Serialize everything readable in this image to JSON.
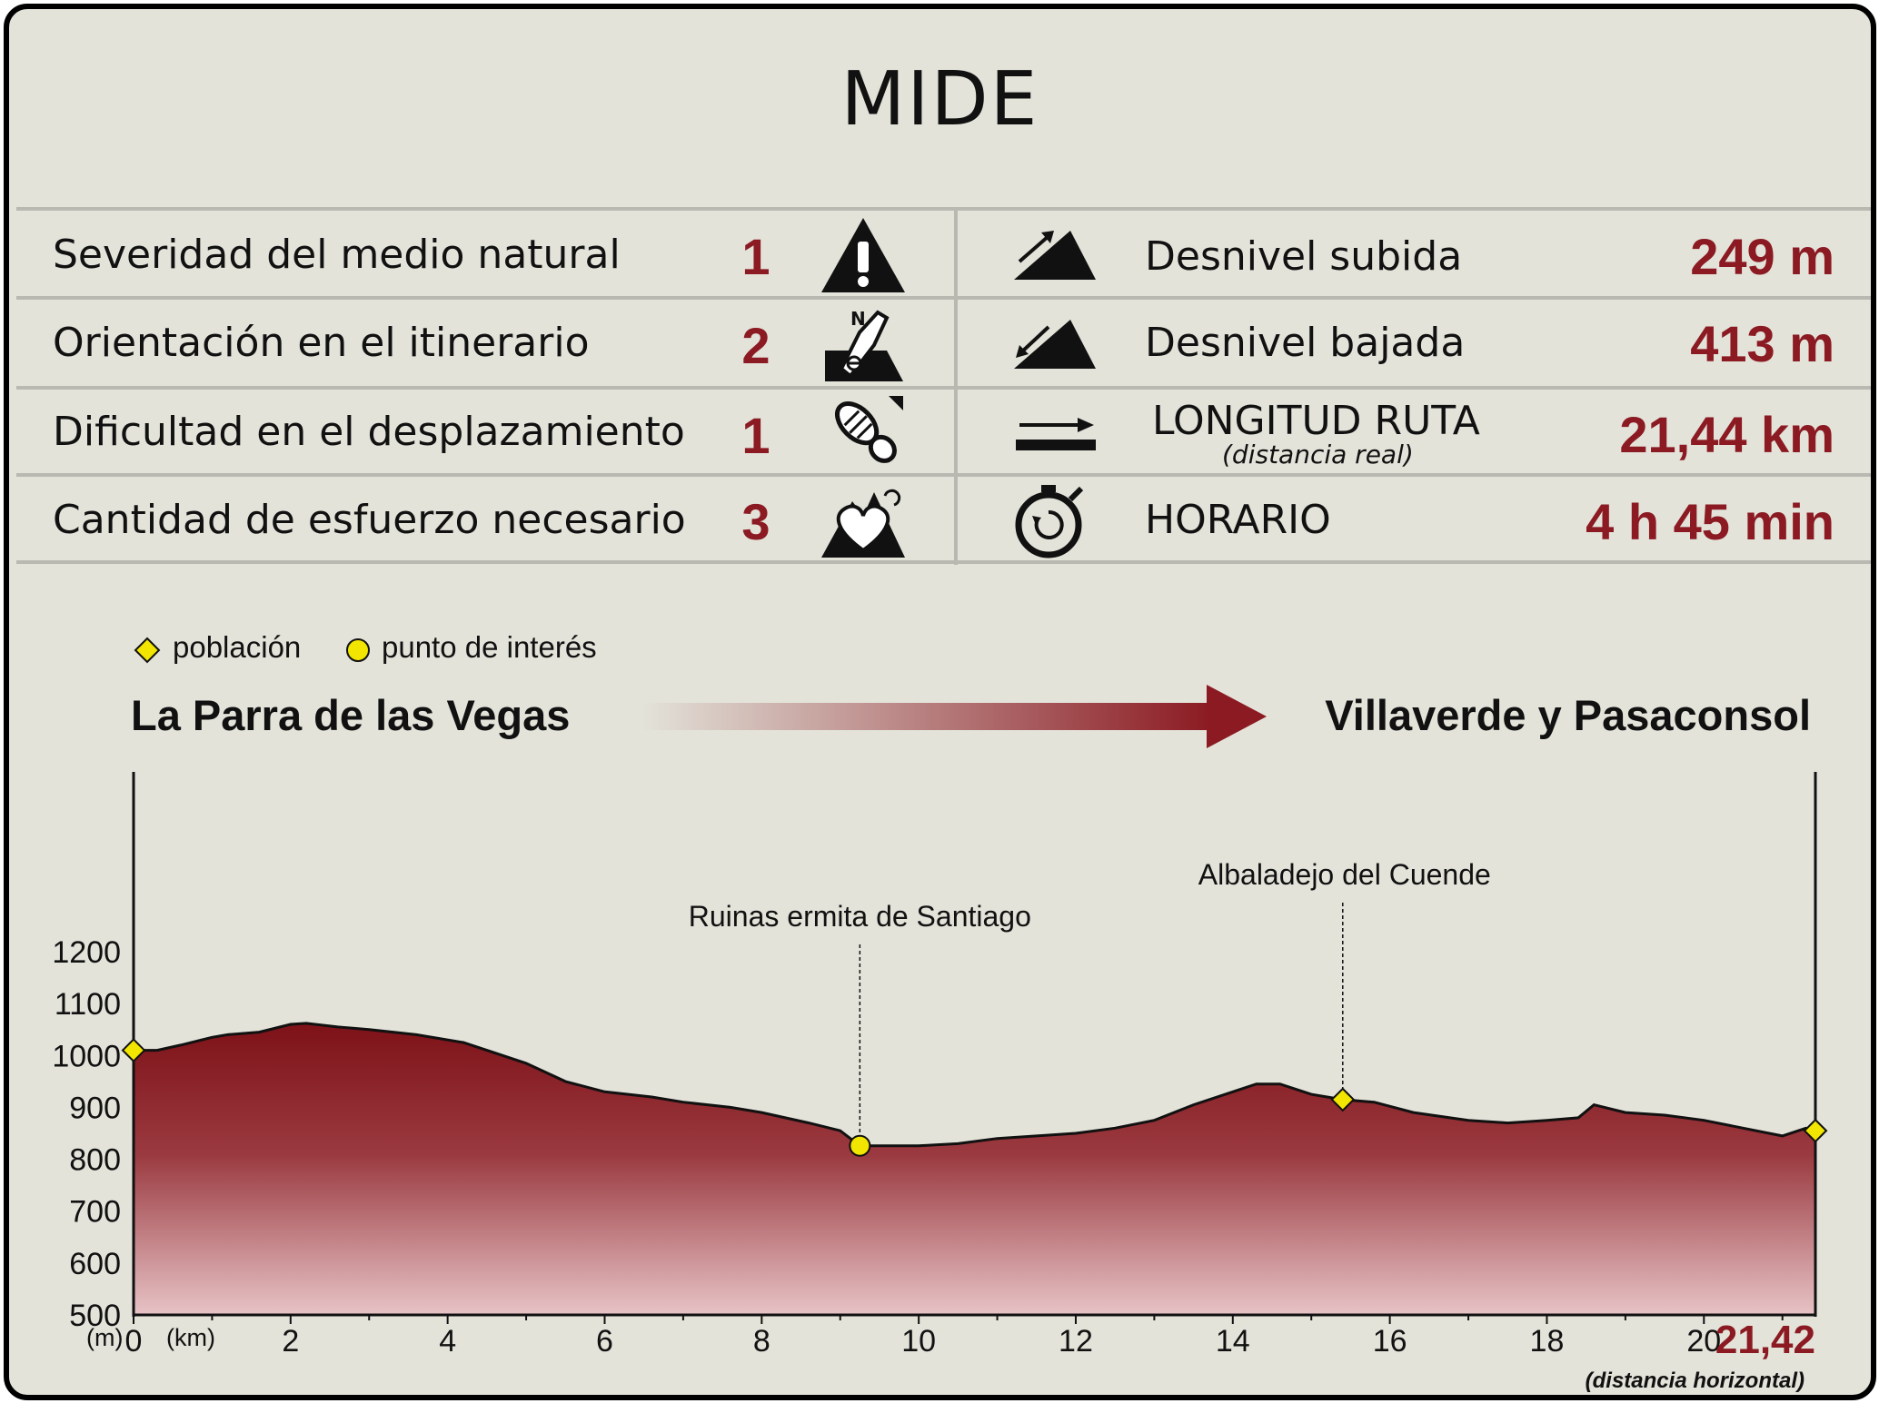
{
  "title": "MIDE",
  "mide": [
    {
      "label": "Severidad del medio natural",
      "score": "1",
      "icon": "warning-icon"
    },
    {
      "label": "Orientación en el itinerario",
      "score": "2",
      "icon": "compass-orientation-icon"
    },
    {
      "label": "Dificultad en el desplazamiento",
      "score": "1",
      "icon": "footprint-icon"
    },
    {
      "label": "Cantidad de esfuerzo necesario",
      "score": "3",
      "icon": "heart-effort-icon"
    }
  ],
  "stats": [
    {
      "label": "Desnivel subida",
      "value": "249 m",
      "icon": "ascent-icon"
    },
    {
      "label": "Desnivel bajada",
      "value": "413 m",
      "icon": "descent-icon"
    },
    {
      "label": "LONGITUD RUTA",
      "sublabel": "(distancia real)",
      "value": "21,44 km",
      "icon": "distance-arrow-icon"
    },
    {
      "label": "HORARIO",
      "value": "4 h 45 min",
      "icon": "stopwatch-icon"
    }
  ],
  "legend": {
    "town": "población",
    "poi": "punto de interés"
  },
  "route": {
    "start": "La Parra de las Vegas",
    "end": "Villaverde y Pasaconsol"
  },
  "colors": {
    "accent": "#8b1a22",
    "fill_top": "#7d1218",
    "fill_bottom": "#e7c3c6",
    "marker": "#f2e600",
    "background": "#e3e3da"
  },
  "chart_data": {
    "type": "area",
    "ylabel": "(m)",
    "xlabel": "(km)",
    "xlim": [
      0,
      21.42
    ],
    "ylim": [
      500,
      1200
    ],
    "yticks": [
      "1200",
      "1100",
      "1000",
      "900",
      "800",
      "700",
      "600",
      "500"
    ],
    "xticks": [
      "0",
      "2",
      "4",
      "6",
      "8",
      "10",
      "12",
      "14",
      "16",
      "18",
      "20"
    ],
    "x_end_label": "21,42",
    "x_end_note": "(distancia horizontal)",
    "x": [
      0,
      0.3,
      0.6,
      1.0,
      1.2,
      1.6,
      2.0,
      2.2,
      2.6,
      3.0,
      3.6,
      4.2,
      4.5,
      5.0,
      5.5,
      6.0,
      6.6,
      7.0,
      7.6,
      8.0,
      8.6,
      9.0,
      9.25,
      9.6,
      10.0,
      10.5,
      11.0,
      11.5,
      12.0,
      12.5,
      13.0,
      13.5,
      14.0,
      14.3,
      14.6,
      15.0,
      15.4,
      15.8,
      16.3,
      17.0,
      17.5,
      18.0,
      18.4,
      18.6,
      19.0,
      19.5,
      20.0,
      20.5,
      21.0,
      21.3,
      21.42
    ],
    "y": [
      1010,
      1010,
      1020,
      1035,
      1040,
      1045,
      1060,
      1062,
      1055,
      1050,
      1040,
      1025,
      1010,
      985,
      950,
      930,
      920,
      910,
      900,
      890,
      870,
      855,
      826,
      826,
      826,
      830,
      840,
      845,
      850,
      860,
      875,
      905,
      930,
      945,
      945,
      925,
      915,
      910,
      890,
      875,
      870,
      875,
      880,
      905,
      890,
      885,
      875,
      860,
      845,
      860,
      855
    ],
    "annotations": [
      {
        "label": "Ruinas ermita de Santiago",
        "x": 9.25,
        "y": 826,
        "marker": "poi"
      },
      {
        "label": "Albaladejo del Cuende",
        "x": 15.4,
        "y": 915,
        "marker": "town"
      }
    ],
    "town_markers": [
      {
        "x": 0,
        "y": 1010
      },
      {
        "x": 15.4,
        "y": 915
      },
      {
        "x": 21.42,
        "y": 855
      }
    ]
  }
}
